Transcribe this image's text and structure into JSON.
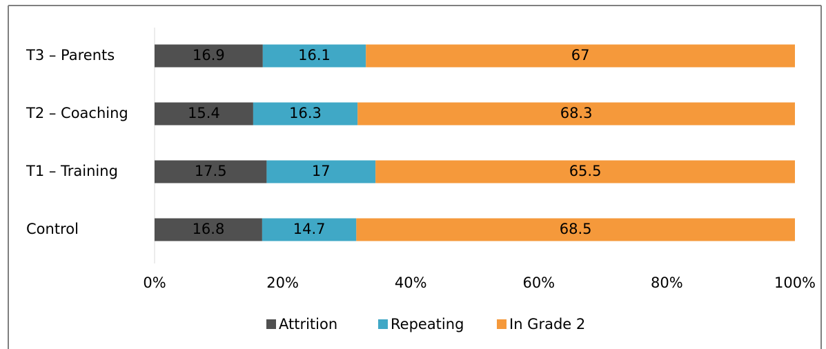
{
  "chart_data": {
    "type": "stacked-bar-horizontal",
    "categories": [
      "T3 – Parents",
      "T2 – Coaching",
      "T1 – Training",
      "Control"
    ],
    "series": [
      {
        "name": "Attrition",
        "color": "#505050",
        "values": [
          16.9,
          15.4,
          17.5,
          16.8
        ]
      },
      {
        "name": "Repeating",
        "color": "#40a8c6",
        "values": [
          16.1,
          16.3,
          17,
          14.7
        ]
      },
      {
        "name": "In Grade 2",
        "color": "#f5993b",
        "values": [
          67,
          68.3,
          65.5,
          68.5
        ]
      }
    ],
    "xlim": [
      0,
      100
    ],
    "xticks": [
      {
        "value": 0,
        "label": "0%"
      },
      {
        "value": 20,
        "label": "20%"
      },
      {
        "value": 40,
        "label": "40%"
      },
      {
        "value": 60,
        "label": "60%"
      },
      {
        "value": 80,
        "label": "80%"
      },
      {
        "value": 100,
        "label": "100%"
      }
    ],
    "legend": "bottom"
  }
}
